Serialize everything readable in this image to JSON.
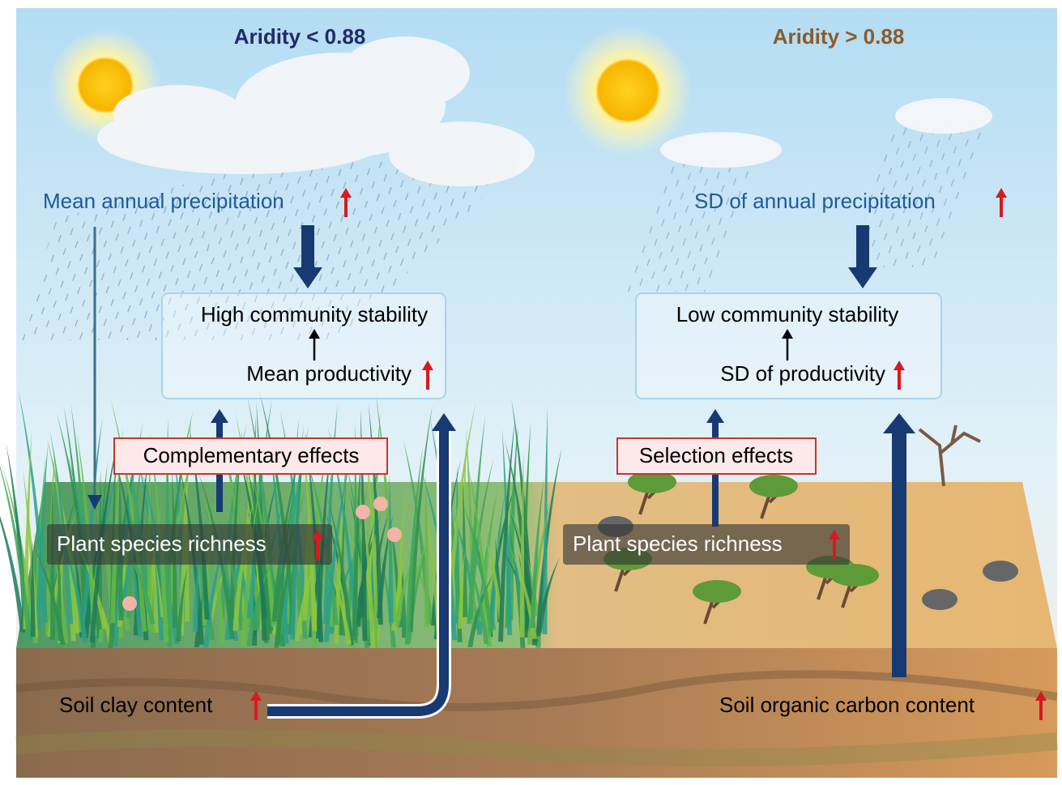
{
  "left": {
    "title": "Aridity < 0.88",
    "precipitation": "Mean annual precipitation",
    "stability": "High community stability",
    "productivity": "Mean productivity",
    "effect": "Complementary effects",
    "richness": "Plant species richness",
    "soil": "Soil clay content"
  },
  "right": {
    "title": "Aridity > 0.88",
    "precipitation": "SD of annual precipitation",
    "stability": "Low community stability",
    "productivity": "SD of productivity",
    "effect": "Selection effects",
    "richness": "Plant species richness",
    "soil": "Soil organic carbon content"
  }
}
